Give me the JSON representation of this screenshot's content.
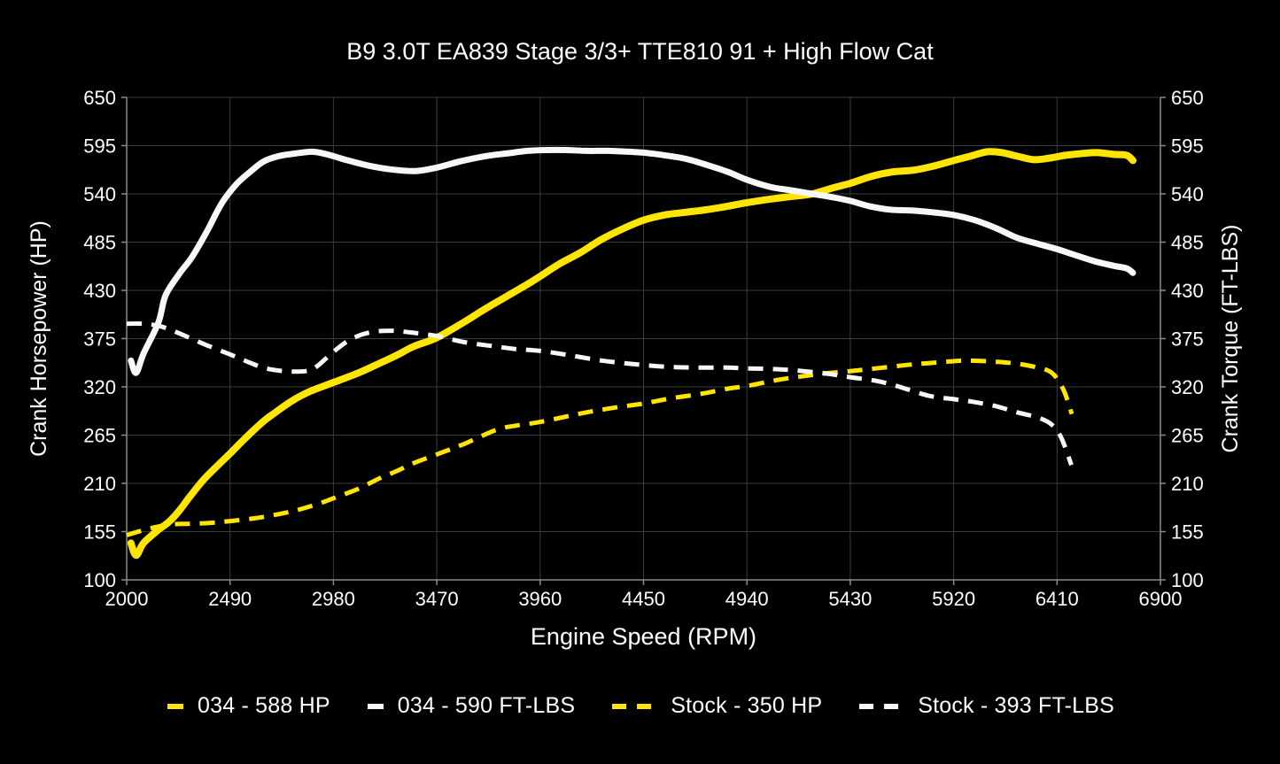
{
  "title": "B9 3.0T EA839 Stage 3/3+ TTE810 91 + High Flow Cat",
  "colors": {
    "background": "#000000",
    "grid": "#3d3d3d",
    "spine": "#8a8a8a",
    "text": "#ffffff",
    "yellow": "#ffe503",
    "white": "#f7f7f7"
  },
  "chart_data": {
    "type": "line",
    "title": "B9 3.0T EA839 Stage 3/3+ TTE810 91 + High Flow Cat",
    "xlabel": "Engine Speed (RPM)",
    "ylabel_left": "Crank Horsepower (HP)",
    "ylabel_right": "Crank Torque (FT-LBS)",
    "xlim": [
      2000,
      6900
    ],
    "ylim": [
      100,
      650
    ],
    "x_ticks": [
      2000,
      2490,
      2980,
      3470,
      3960,
      4450,
      4940,
      5430,
      5920,
      6410,
      6900
    ],
    "y_ticks": [
      100,
      155,
      210,
      265,
      320,
      375,
      430,
      485,
      540,
      595,
      650
    ],
    "grid": true,
    "legend_position": "bottom",
    "series": [
      {
        "name": "034 - 588 HP",
        "color_key": "yellow",
        "style": "solid",
        "width": 8,
        "points": [
          [
            2020,
            142
          ],
          [
            2045,
            128
          ],
          [
            2080,
            142
          ],
          [
            2150,
            157
          ],
          [
            2200,
            166
          ],
          [
            2250,
            179
          ],
          [
            2300,
            195
          ],
          [
            2364,
            214
          ],
          [
            2430,
            230
          ],
          [
            2490,
            244
          ],
          [
            2560,
            261
          ],
          [
            2645,
            280
          ],
          [
            2700,
            290
          ],
          [
            2783,
            304
          ],
          [
            2870,
            315
          ],
          [
            2980,
            325
          ],
          [
            3100,
            336
          ],
          [
            3200,
            347
          ],
          [
            3280,
            356
          ],
          [
            3360,
            366
          ],
          [
            3470,
            376
          ],
          [
            3600,
            394
          ],
          [
            3700,
            409
          ],
          [
            3800,
            423
          ],
          [
            3900,
            437
          ],
          [
            3960,
            446
          ],
          [
            4050,
            460
          ],
          [
            4150,
            473
          ],
          [
            4250,
            488
          ],
          [
            4350,
            500
          ],
          [
            4450,
            510
          ],
          [
            4550,
            516
          ],
          [
            4650,
            519
          ],
          [
            4750,
            522
          ],
          [
            4850,
            526
          ],
          [
            4940,
            530
          ],
          [
            5050,
            534
          ],
          [
            5150,
            537
          ],
          [
            5250,
            540
          ],
          [
            5350,
            547
          ],
          [
            5430,
            552
          ],
          [
            5530,
            560
          ],
          [
            5630,
            565
          ],
          [
            5730,
            567
          ],
          [
            5830,
            572
          ],
          [
            5920,
            578
          ],
          [
            6000,
            583
          ],
          [
            6080,
            588
          ],
          [
            6150,
            587
          ],
          [
            6220,
            583
          ],
          [
            6300,
            579
          ],
          [
            6380,
            581
          ],
          [
            6450,
            584
          ],
          [
            6530,
            586
          ],
          [
            6600,
            587
          ],
          [
            6680,
            585
          ],
          [
            6740,
            584
          ],
          [
            6770,
            578
          ]
        ]
      },
      {
        "name": "034 - 590 FT-LBS",
        "color_key": "white",
        "style": "solid",
        "width": 7,
        "points": [
          [
            2020,
            350
          ],
          [
            2045,
            336
          ],
          [
            2080,
            358
          ],
          [
            2150,
            393
          ],
          [
            2184,
            424
          ],
          [
            2250,
            449
          ],
          [
            2310,
            468
          ],
          [
            2380,
            497
          ],
          [
            2450,
            529
          ],
          [
            2520,
            551
          ],
          [
            2590,
            566
          ],
          [
            2650,
            577
          ],
          [
            2720,
            583
          ],
          [
            2800,
            586
          ],
          [
            2880,
            588
          ],
          [
            2950,
            585
          ],
          [
            3050,
            578
          ],
          [
            3150,
            572
          ],
          [
            3250,
            568
          ],
          [
            3370,
            566
          ],
          [
            3470,
            570
          ],
          [
            3580,
            577
          ],
          [
            3700,
            583
          ],
          [
            3800,
            586
          ],
          [
            3900,
            589
          ],
          [
            3990,
            590
          ],
          [
            4080,
            590
          ],
          [
            4180,
            589
          ],
          [
            4280,
            589
          ],
          [
            4380,
            588
          ],
          [
            4450,
            587
          ],
          [
            4550,
            584
          ],
          [
            4650,
            580
          ],
          [
            4750,
            573
          ],
          [
            4850,
            565
          ],
          [
            4940,
            556
          ],
          [
            5050,
            548
          ],
          [
            5150,
            544
          ],
          [
            5250,
            540
          ],
          [
            5350,
            536
          ],
          [
            5430,
            532
          ],
          [
            5520,
            526
          ],
          [
            5620,
            522
          ],
          [
            5720,
            521
          ],
          [
            5820,
            519
          ],
          [
            5920,
            516
          ],
          [
            6020,
            510
          ],
          [
            6120,
            501
          ],
          [
            6220,
            490
          ],
          [
            6320,
            483
          ],
          [
            6410,
            477
          ],
          [
            6500,
            470
          ],
          [
            6590,
            463
          ],
          [
            6680,
            458
          ],
          [
            6740,
            455
          ],
          [
            6770,
            450
          ]
        ]
      },
      {
        "name": "Stock - 350 HP",
        "color_key": "yellow",
        "style": "dashed",
        "width": 5,
        "points": [
          [
            2000,
            151
          ],
          [
            2100,
            158
          ],
          [
            2200,
            163
          ],
          [
            2300,
            164
          ],
          [
            2400,
            165
          ],
          [
            2490,
            167
          ],
          [
            2600,
            170
          ],
          [
            2700,
            174
          ],
          [
            2800,
            179
          ],
          [
            2900,
            186
          ],
          [
            2980,
            193
          ],
          [
            3100,
            204
          ],
          [
            3200,
            216
          ],
          [
            3280,
            224
          ],
          [
            3360,
            233
          ],
          [
            3470,
            243
          ],
          [
            3600,
            255
          ],
          [
            3752,
            271
          ],
          [
            3850,
            276
          ],
          [
            3960,
            280
          ],
          [
            4100,
            287
          ],
          [
            4205,
            292
          ],
          [
            4330,
            297
          ],
          [
            4450,
            301
          ],
          [
            4580,
            307
          ],
          [
            4722,
            312
          ],
          [
            4850,
            318
          ],
          [
            4940,
            321
          ],
          [
            5087,
            328
          ],
          [
            5200,
            332
          ],
          [
            5300,
            335
          ],
          [
            5430,
            338
          ],
          [
            5550,
            341
          ],
          [
            5700,
            345
          ],
          [
            5800,
            347
          ],
          [
            5900,
            349
          ],
          [
            5980,
            350
          ],
          [
            6100,
            349
          ],
          [
            6200,
            347
          ],
          [
            6300,
            343
          ],
          [
            6385,
            336
          ],
          [
            6440,
            317
          ],
          [
            6480,
            289
          ]
        ]
      },
      {
        "name": "Stock - 393 FT-LBS",
        "color_key": "white",
        "style": "dashed",
        "width": 5,
        "points": [
          [
            2000,
            392
          ],
          [
            2080,
            392
          ],
          [
            2160,
            389
          ],
          [
            2250,
            381
          ],
          [
            2364,
            369
          ],
          [
            2490,
            357
          ],
          [
            2580,
            348
          ],
          [
            2660,
            341
          ],
          [
            2750,
            338
          ],
          [
            2850,
            338
          ],
          [
            2900,
            343
          ],
          [
            2980,
            360
          ],
          [
            3060,
            374
          ],
          [
            3150,
            382
          ],
          [
            3250,
            384
          ],
          [
            3350,
            382
          ],
          [
            3470,
            378
          ],
          [
            3600,
            371
          ],
          [
            3750,
            366
          ],
          [
            3850,
            363
          ],
          [
            3960,
            361
          ],
          [
            4100,
            356
          ],
          [
            4250,
            350
          ],
          [
            4400,
            346
          ],
          [
            4550,
            343
          ],
          [
            4700,
            342
          ],
          [
            4850,
            342
          ],
          [
            4940,
            341
          ],
          [
            5100,
            340
          ],
          [
            5250,
            337
          ],
          [
            5350,
            334
          ],
          [
            5430,
            331
          ],
          [
            5550,
            327
          ],
          [
            5650,
            321
          ],
          [
            5800,
            310
          ],
          [
            5920,
            306
          ],
          [
            6010,
            303
          ],
          [
            6120,
            298
          ],
          [
            6220,
            291
          ],
          [
            6320,
            285
          ],
          [
            6385,
            277
          ],
          [
            6430,
            262
          ],
          [
            6478,
            231
          ]
        ]
      }
    ]
  }
}
